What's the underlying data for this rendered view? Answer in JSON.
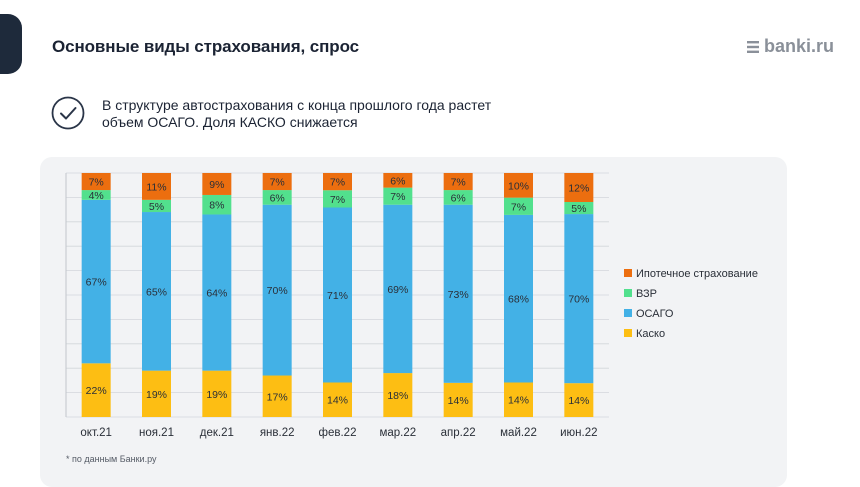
{
  "header": {
    "title": "Основные виды страхования, спрос",
    "logo_text": "banki.ru"
  },
  "note": {
    "icon": "check-circle-icon",
    "line1": "В структуре автострахования с конца прошлого года растет",
    "line2": "объем ОСАГО. Доля КАСКО снижается"
  },
  "footnote": "* по данным Банки.ру",
  "chart_data": {
    "type": "bar",
    "stacked": true,
    "percent": true,
    "categories": [
      "окт.21",
      "ноя.21",
      "дек.21",
      "янв.22",
      "фев.22",
      "мар.22",
      "апр.22",
      "май.22",
      "июн.22"
    ],
    "series": [
      {
        "name": "Каско",
        "color": "#fdbe13",
        "values": [
          22,
          19,
          19,
          17,
          14,
          18,
          14,
          14,
          14
        ]
      },
      {
        "name": "ОСАГО",
        "color": "#43b1e6",
        "values": [
          67,
          65,
          64,
          70,
          71,
          69,
          73,
          68,
          70
        ]
      },
      {
        "name": "ВЗР",
        "color": "#52e08d",
        "values": [
          4,
          5,
          8,
          6,
          7,
          7,
          6,
          7,
          5
        ]
      },
      {
        "name": "Ипотечное страхование",
        "color": "#ec6e0f",
        "values": [
          7,
          11,
          9,
          7,
          7,
          6,
          7,
          10,
          12
        ]
      }
    ],
    "legend_order": [
      "Ипотечное страхование",
      "ВЗР",
      "ОСАГО",
      "Каско"
    ],
    "legend_position": "right",
    "ylim": [
      0,
      100
    ],
    "grid": true
  }
}
